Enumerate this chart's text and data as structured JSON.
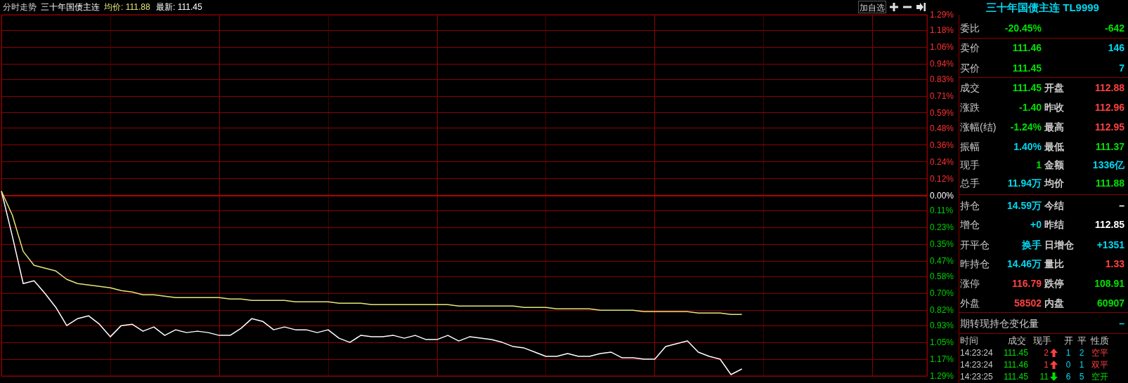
{
  "chart_data": [
    {
      "type": "line",
      "title": "分时走势",
      "annotations": [
        "三十年国债主连",
        "均价: 111.88",
        "最新: 111.45",
        "加自选"
      ],
      "categories": [
        null,
        null,
        null,
        null,
        null,
        null,
        null,
        null,
        null,
        null,
        null,
        null,
        null,
        null,
        null,
        null,
        null,
        null,
        null,
        null,
        null,
        null,
        null,
        null,
        null,
        null,
        null,
        null,
        null,
        null,
        null,
        null,
        null,
        null,
        null,
        null,
        null,
        null,
        null,
        null,
        null,
        null,
        null,
        null,
        null,
        null,
        null,
        null,
        null,
        null,
        null,
        null,
        null,
        null,
        null,
        null,
        null,
        null,
        null,
        null,
        null,
        null,
        null,
        null,
        null,
        null,
        null,
        null,
        null,
        null,
        null,
        null,
        null,
        null,
        null,
        null,
        null,
        null,
        null,
        null,
        null,
        null,
        null,
        null,
        null,
        null
      ],
      "series": [
        {
          "color": "#ffffff",
          "values": [
            0.03,
            -0.29,
            -0.63,
            -0.61,
            -0.7,
            -0.8,
            -0.93,
            -0.88,
            -0.86,
            -0.92,
            -1.01,
            -0.93,
            -0.92,
            -0.97,
            -0.94,
            -1.0,
            -0.96,
            -0.98,
            -0.97,
            -0.98,
            -1.0,
            -1.0,
            -0.95,
            -0.88,
            -0.9,
            -0.96,
            -0.94,
            -0.96,
            -0.96,
            -0.98,
            -0.96,
            -1.02,
            -1.05,
            -1.0,
            -1.01,
            -1.01,
            -1.0,
            -1.02,
            -1.0,
            -1.03,
            -1.03,
            -1.0,
            -1.04,
            -1.01,
            -1.02,
            -1.03,
            -1.05,
            -1.08,
            -1.09,
            -1.12,
            -1.15,
            -1.15,
            -1.13,
            -1.15,
            -1.15,
            -1.13,
            -1.12,
            -1.16,
            -1.16,
            -1.17,
            -1.17,
            -1.08,
            -1.06,
            -1.04,
            -1.12,
            -1.15,
            -1.17,
            -1.28,
            -1.24,
            null,
            null,
            null,
            null,
            null,
            null,
            null,
            null,
            null,
            null,
            null,
            null,
            null,
            null,
            null,
            null,
            null
          ]
        },
        {
          "color": "#e6e67a",
          "values": [
            0.03,
            -0.14,
            -0.4,
            -0.5,
            -0.52,
            -0.54,
            -0.6,
            -0.63,
            -0.64,
            -0.65,
            -0.66,
            -0.68,
            -0.69,
            -0.71,
            -0.71,
            -0.72,
            -0.73,
            -0.73,
            -0.73,
            -0.73,
            -0.73,
            -0.74,
            -0.74,
            -0.75,
            -0.75,
            -0.75,
            -0.75,
            -0.76,
            -0.76,
            -0.76,
            -0.76,
            -0.77,
            -0.77,
            -0.77,
            -0.78,
            -0.78,
            -0.78,
            -0.78,
            -0.78,
            -0.78,
            -0.78,
            -0.78,
            -0.79,
            -0.79,
            -0.79,
            -0.79,
            -0.79,
            -0.79,
            -0.8,
            -0.8,
            -0.8,
            -0.81,
            -0.81,
            -0.81,
            -0.81,
            -0.82,
            -0.82,
            -0.82,
            -0.82,
            -0.83,
            -0.83,
            -0.83,
            -0.83,
            -0.83,
            -0.84,
            -0.84,
            -0.84,
            -0.85,
            -0.85,
            null,
            null,
            null,
            null,
            null,
            null,
            null,
            null,
            null,
            null,
            null,
            null,
            null,
            null,
            null,
            null,
            null
          ]
        }
      ],
      "ylim": [
        -1.29,
        1.29
      ],
      "yticks": [
        {
          "value": 1.29,
          "label": "1.29%"
        },
        {
          "value": 1.18,
          "label": "1.18%"
        },
        {
          "value": 1.06,
          "label": "1.06%"
        },
        {
          "value": 0.94,
          "label": "0.94%"
        },
        {
          "value": 0.83,
          "label": "0.83%"
        },
        {
          "value": 0.71,
          "label": "0.71%"
        },
        {
          "value": 0.59,
          "label": "0.59%"
        },
        {
          "value": 0.48,
          "label": "0.48%"
        },
        {
          "value": 0.36,
          "label": "0.36%"
        },
        {
          "value": 0.24,
          "label": "0.24%"
        },
        {
          "value": 0.12,
          "label": "0.12%"
        },
        {
          "value": 0,
          "label": "0.00%"
        },
        {
          "value": -0.11,
          "label": "0.11%"
        },
        {
          "value": -0.23,
          "label": "0.23%"
        },
        {
          "value": -0.35,
          "label": "0.35%"
        },
        {
          "value": -0.47,
          "label": "0.47%"
        },
        {
          "value": -0.58,
          "label": "0.58%"
        },
        {
          "value": -0.7,
          "label": "0.70%"
        },
        {
          "value": -0.82,
          "label": "0.82%"
        },
        {
          "value": -0.93,
          "label": "0.93%"
        },
        {
          "value": -1.05,
          "label": "1.05%"
        },
        {
          "value": -1.17,
          "label": "1.17%"
        },
        {
          "value": -1.29,
          "label": "1.29%"
        }
      ],
      "grid": true,
      "tick_labels": "y",
      "marker": "none",
      "line_style": "solid",
      "ref_lines": [
        {
          "axis": "y",
          "value": 0,
          "color": "#b00000"
        }
      ]
    },
    {
      "type": "other",
      "title": "三十年国债主连 TL9999",
      "annotations": [
        "委比",
        "-20.45%",
        "-642",
        "卖价",
        "111.46",
        "146",
        "买价",
        "111.45",
        "7",
        "成交",
        "111.45",
        "开盘",
        "112.88",
        "涨跌",
        "-1.40",
        "昨收",
        "112.96",
        "涨幅(结)",
        "-1.24%",
        "最高",
        "112.95",
        "振幅",
        "1.40%",
        "最低",
        "111.37",
        "现手",
        "1",
        "金额",
        "1336亿",
        "总手",
        "11.94万",
        "均价",
        "111.88",
        "持仓",
        "14.59万",
        "今结",
        "–",
        "增仓",
        "+0",
        "昨结",
        "112.85",
        "开平仓",
        "换手",
        "日增仓",
        "+1351",
        "昨持仓",
        "14.46万",
        "量比",
        "1.33",
        "涨停",
        "116.79",
        "跌停",
        "108.91",
        "外盘",
        "58502",
        "内盘",
        "60907",
        "期转现持仓变化量",
        "–",
        "时间",
        "成交",
        "现手",
        "开",
        "平",
        "性质",
        "14:23:24",
        "111.45",
        "2",
        "1",
        "2",
        "空平",
        "14:23:24",
        "111.46",
        "1",
        "0",
        "1",
        "双平",
        "14:23:25",
        "111.45",
        "11",
        "6",
        "5",
        "空开"
      ],
      "colors": [
        "#c8c8c8",
        "#00e000",
        "#00e000",
        "#c8c8c8",
        "#00e000",
        "#00d8f0",
        "#c8c8c8",
        "#00e000",
        "#00d8f0",
        "#c8c8c8",
        "#00e000",
        "#c8c8c8",
        "#ff4040",
        "#c8c8c8",
        "#00e000",
        "#c8c8c8",
        "#ff4040",
        "#c8c8c8",
        "#00e000",
        "#c8c8c8",
        "#ff4040",
        "#c8c8c8",
        "#00d8f0",
        "#c8c8c8",
        "#00e000",
        "#c8c8c8",
        "#00e000",
        "#c8c8c8",
        "#00d8f0",
        "#c8c8c8",
        "#00d8f0",
        "#c8c8c8",
        "#00e000",
        "#c8c8c8",
        "#00d8f0",
        "#c8c8c8",
        "#ffffff",
        "#c8c8c8",
        "#00d8f0",
        "#c8c8c8",
        "#ffffff",
        "#c8c8c8",
        "#00d8f0",
        "#c8c8c8",
        "#00d8f0",
        "#c8c8c8",
        "#00d8f0",
        "#c8c8c8",
        "#ff4040",
        "#c8c8c8",
        "#ff4040",
        "#c8c8c8",
        "#00e000",
        "#c8c8c8",
        "#ff4040",
        "#c8c8c8",
        "#00e000",
        "#c8c8c8",
        "#00d8f0",
        "#c8c8c8",
        "#c8c8c8",
        "#c8c8c8",
        "#c8c8c8",
        "#c8c8c8",
        "#c8c8c8",
        "#c8c8c8",
        "#00e000",
        "#ff4040",
        "#00d8f0",
        "#00d8f0",
        "#ff4040",
        "#c8c8c8",
        "#00e000",
        "#ff4040",
        "#00d8f0",
        "#00d8f0",
        "#ff4040",
        "#c8c8c8",
        "#00e000",
        "#00e000",
        "#00d8f0",
        "#00d8f0",
        "#00e000"
      ]
    }
  ]
}
